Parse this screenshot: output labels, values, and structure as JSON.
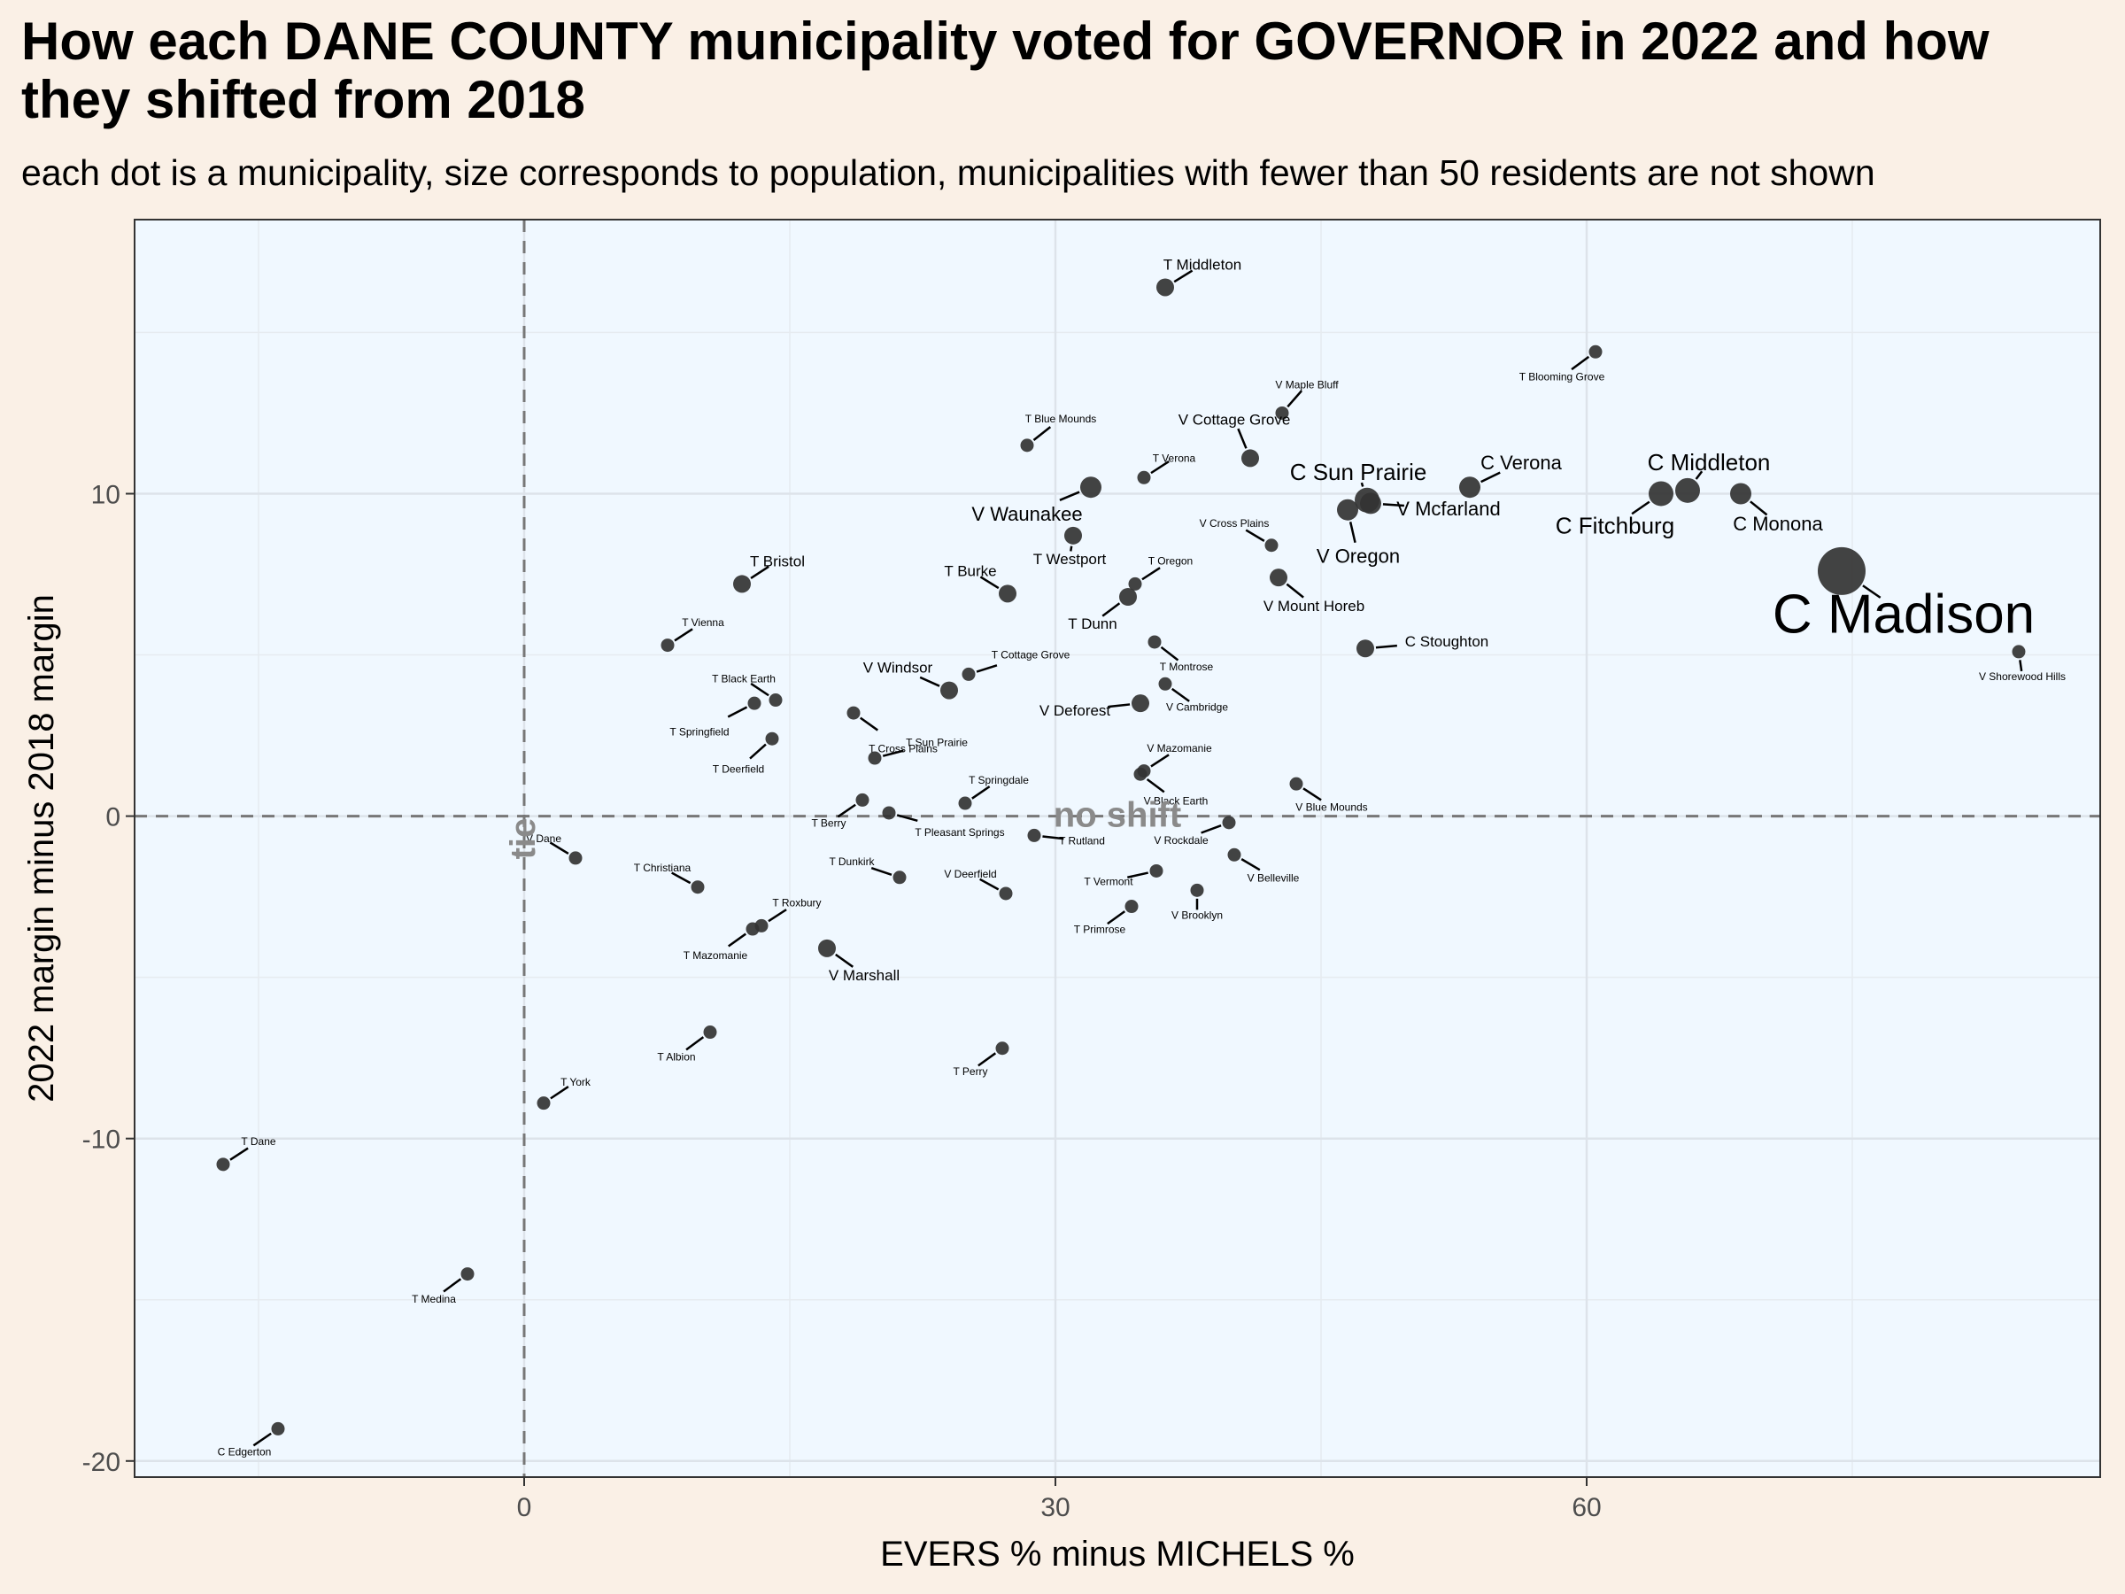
{
  "title": "How each DANE COUNTY municipality voted for GOVERNOR in 2022 and how they shifted from 2018",
  "subtitle": "each dot is a municipality, size corresponds to population, municipalities with fewer than 50 residents are not shown",
  "colors": {
    "page_background": "#faf0e6",
    "panel_background": "#f0f8ff",
    "point": "#333333",
    "reference_line": "#777777"
  },
  "chart_data": {
    "type": "scatter",
    "xlabel": "EVERS % minus MICHELS %",
    "ylabel": "2022 margin minus 2018 margin",
    "xlim": [
      -22,
      89
    ],
    "ylim": [
      -20.5,
      18.5
    ],
    "x_ticks": [
      0,
      30,
      60
    ],
    "y_ticks": [
      -20,
      -10,
      0,
      10
    ],
    "grid": true,
    "annotations": [
      {
        "text": "tie",
        "x": 0,
        "y": -0.7,
        "rotate": -90
      },
      {
        "text": "no shift",
        "x": 33.5,
        "y": 0
      }
    ],
    "points": [
      {
        "label": "C Madison",
        "x": 74.4,
        "y": 7.6,
        "tier": 7
      },
      {
        "label": "C Sun Prairie",
        "x": 47.6,
        "y": 9.8,
        "tier": 4
      },
      {
        "label": "C Fitchburg",
        "x": 64.2,
        "y": 10.0,
        "tier": 4
      },
      {
        "label": "C Middleton",
        "x": 65.7,
        "y": 10.1,
        "tier": 4
      },
      {
        "label": "C Verona",
        "x": 53.4,
        "y": 10.2,
        "tier": 3
      },
      {
        "label": "C Monona",
        "x": 68.7,
        "y": 10.0,
        "tier": 3
      },
      {
        "label": "V Waunakee",
        "x": 32.0,
        "y": 10.2,
        "tier": 3
      },
      {
        "label": "V Oregon",
        "x": 46.5,
        "y": 9.5,
        "tier": 3
      },
      {
        "label": "V Mcfarland",
        "x": 47.8,
        "y": 9.7,
        "tier": 3
      },
      {
        "label": "V Cottage Grove",
        "x": 41.0,
        "y": 11.1,
        "tier": 2
      },
      {
        "label": "V Windsor",
        "x": 24.0,
        "y": 3.9,
        "tier": 2
      },
      {
        "label": "V Deforest",
        "x": 34.8,
        "y": 3.5,
        "tier": 2
      },
      {
        "label": "C Stoughton",
        "x": 47.5,
        "y": 5.2,
        "tier": 2
      },
      {
        "label": "V Mount Horeb",
        "x": 42.6,
        "y": 7.4,
        "tier": 2
      },
      {
        "label": "V Marshall",
        "x": 17.1,
        "y": -4.1,
        "tier": 2
      },
      {
        "label": "T Middleton",
        "x": 36.2,
        "y": 16.4,
        "tier": 2
      },
      {
        "label": "T Bristol",
        "x": 12.3,
        "y": 7.2,
        "tier": 2
      },
      {
        "label": "T Westport",
        "x": 31.0,
        "y": 8.7,
        "tier": 2
      },
      {
        "label": "T Burke",
        "x": 27.3,
        "y": 6.9,
        "tier": 2
      },
      {
        "label": "T Dunn",
        "x": 34.1,
        "y": 6.8,
        "tier": 2
      },
      {
        "label": "T Oregon",
        "x": 34.5,
        "y": 7.2,
        "tier": 1
      },
      {
        "label": "T Cottage Grove",
        "x": 25.1,
        "y": 4.4,
        "tier": 1
      },
      {
        "label": "V Cross Plains",
        "x": 42.2,
        "y": 8.4,
        "tier": 1
      },
      {
        "label": "T Verona",
        "x": 35.0,
        "y": 10.5,
        "tier": 1
      },
      {
        "label": "T Roxbury",
        "x": 13.4,
        "y": -3.4,
        "tier": 1
      },
      {
        "label": "T Mazomanie",
        "x": 12.9,
        "y": -3.5,
        "tier": 1
      },
      {
        "label": "V Maple Bluff",
        "x": 42.8,
        "y": 12.5,
        "tier": 1
      },
      {
        "label": "T Blooming Grove",
        "x": 60.5,
        "y": 14.4,
        "tier": 1
      },
      {
        "label": "T Blue Mounds",
        "x": 28.4,
        "y": 11.5,
        "tier": 1
      },
      {
        "label": "T Vienna",
        "x": 8.1,
        "y": 5.3,
        "tier": 1
      },
      {
        "label": "T Black Earth",
        "x": 14.2,
        "y": 3.6,
        "tier": 1
      },
      {
        "label": "T Springfield",
        "x": 13.0,
        "y": 3.5,
        "tier": 1
      },
      {
        "label": "T Cross Plains",
        "x": 18.6,
        "y": 3.2,
        "tier": 1
      },
      {
        "label": "T Deerfield",
        "x": 14.0,
        "y": 2.4,
        "tier": 1
      },
      {
        "label": "T Sun Prairie",
        "x": 19.8,
        "y": 1.8,
        "tier": 1
      },
      {
        "label": "T Montrose",
        "x": 35.6,
        "y": 5.4,
        "tier": 1
      },
      {
        "label": "V Cambridge",
        "x": 36.2,
        "y": 4.1,
        "tier": 1
      },
      {
        "label": "V Mazomanie",
        "x": 35.0,
        "y": 1.4,
        "tier": 1
      },
      {
        "label": "V Black Earth",
        "x": 34.8,
        "y": 1.3,
        "tier": 1
      },
      {
        "label": "T Springdale",
        "x": 24.9,
        "y": 0.4,
        "tier": 1
      },
      {
        "label": "T Berry",
        "x": 19.1,
        "y": 0.5,
        "tier": 1
      },
      {
        "label": "T Pleasant Springs",
        "x": 20.6,
        "y": 0.1,
        "tier": 1
      },
      {
        "label": "T Rutland",
        "x": 28.8,
        "y": -0.6,
        "tier": 1
      },
      {
        "label": "V Blue Mounds",
        "x": 43.6,
        "y": 1.0,
        "tier": 1
      },
      {
        "label": "V Rockdale",
        "x": 39.8,
        "y": -0.2,
        "tier": 1
      },
      {
        "label": "V Belleville",
        "x": 40.1,
        "y": -1.2,
        "tier": 1
      },
      {
        "label": "T Vermont",
        "x": 35.7,
        "y": -1.7,
        "tier": 1
      },
      {
        "label": "V Brooklyn",
        "x": 38.0,
        "y": -2.3,
        "tier": 1
      },
      {
        "label": "T Primrose",
        "x": 34.3,
        "y": -2.8,
        "tier": 1
      },
      {
        "label": "V Deerfield",
        "x": 27.2,
        "y": -2.4,
        "tier": 1
      },
      {
        "label": "T Dunkirk",
        "x": 21.2,
        "y": -1.9,
        "tier": 1
      },
      {
        "label": "T Christiana",
        "x": 9.8,
        "y": -2.2,
        "tier": 1
      },
      {
        "label": "V Dane",
        "x": 2.9,
        "y": -1.3,
        "tier": 1
      },
      {
        "label": "T Albion",
        "x": 10.5,
        "y": -6.7,
        "tier": 1
      },
      {
        "label": "T Perry",
        "x": 27.0,
        "y": -7.2,
        "tier": 1
      },
      {
        "label": "T York",
        "x": 1.1,
        "y": -8.9,
        "tier": 1
      },
      {
        "label": "T Dane",
        "x": -17.0,
        "y": -10.8,
        "tier": 1
      },
      {
        "label": "T Medina",
        "x": -3.2,
        "y": -14.2,
        "tier": 1
      },
      {
        "label": "C Edgerton",
        "x": -13.9,
        "y": -19.0,
        "tier": 1
      },
      {
        "label": "V Shorewood Hills",
        "x": 84.4,
        "y": 5.1,
        "tier": 1
      }
    ]
  }
}
